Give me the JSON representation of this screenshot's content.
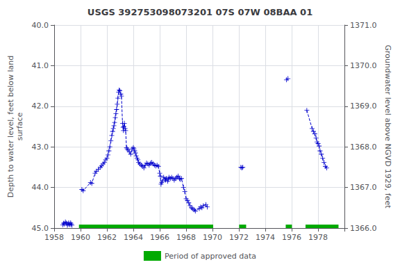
{
  "chart_data": {
    "type": "line",
    "title": "USGS 392753098073201 07S 07W 08BAA 01",
    "ylabel": "Depth to water level, feet below land\nsurface",
    "y2label": "Groundwater level above NGVD 1929, feet",
    "xlim": [
      1958,
      1980
    ],
    "xticks": [
      1958,
      1960,
      1962,
      1964,
      1966,
      1968,
      1970,
      1972,
      1974,
      1976,
      1978
    ],
    "ylim": [
      45.0,
      40.0
    ],
    "yticks": [
      {
        "value": 40.0,
        "label": "40.0"
      },
      {
        "value": 41.0,
        "label": "41.0"
      },
      {
        "value": 42.0,
        "label": "42.0"
      },
      {
        "value": 43.0,
        "label": "43.0"
      },
      {
        "value": 44.0,
        "label": "44.0"
      },
      {
        "value": 45.0,
        "label": "45.0"
      }
    ],
    "y2lim": [
      1366.0,
      1371.0
    ],
    "y2ticks": [
      {
        "value": 1371.0,
        "label": "1371.0"
      },
      {
        "value": 1370.0,
        "label": "1370.0"
      },
      {
        "value": 1369.0,
        "label": "1369.0"
      },
      {
        "value": 1368.0,
        "label": "1368.0"
      },
      {
        "value": 1367.0,
        "label": "1367.0"
      },
      {
        "value": 1366.0,
        "label": "1366.0"
      }
    ],
    "grid": true,
    "legend": "bottom",
    "series": [
      {
        "type": "line",
        "color": "#0000cc",
        "marker": "plus",
        "line_style": "dashed",
        "x": [
          1958.65,
          1958.72,
          1958.78,
          1958.85,
          1958.92,
          1959.0,
          1959.05,
          1959.1,
          1959.15,
          1959.2,
          1959.25,
          1959.3,
          1959.35
        ],
        "values": [
          44.92,
          44.88,
          44.9,
          44.85,
          44.88,
          44.93,
          44.9,
          44.87,
          44.9,
          44.92,
          44.87,
          44.9,
          44.93
        ]
      },
      {
        "type": "line",
        "color": "#0000cc",
        "marker": "plus",
        "line_style": "dashed",
        "x": [
          1960.1,
          1960.2,
          1960.75,
          1960.85,
          1961.1,
          1961.2,
          1961.35,
          1961.5,
          1961.6,
          1961.7,
          1961.8,
          1961.9,
          1962.0,
          1962.08,
          1962.15,
          1962.22,
          1962.3,
          1962.37,
          1962.43,
          1962.48,
          1962.53,
          1962.58,
          1962.63,
          1962.68,
          1962.73,
          1962.78,
          1962.83,
          1962.88,
          1962.93,
          1962.98,
          1963.05,
          1963.1,
          1963.18,
          1963.22,
          1963.25,
          1963.28,
          1963.32,
          1963.38,
          1963.42,
          1963.48,
          1963.53,
          1963.6,
          1963.7,
          1963.8,
          1963.9,
          1964.0,
          1964.05,
          1964.1,
          1964.15,
          1964.22,
          1964.28,
          1964.35,
          1964.4,
          1964.5,
          1964.6,
          1964.7,
          1964.8,
          1964.9,
          1965.0,
          1965.1,
          1965.2,
          1965.3,
          1965.4,
          1965.5,
          1965.6,
          1965.7,
          1965.8,
          1965.9,
          1966.0,
          1966.05,
          1966.1,
          1966.15,
          1966.2,
          1966.3,
          1966.4,
          1966.45,
          1966.5,
          1966.6,
          1966.65,
          1966.7,
          1966.8,
          1966.9,
          1967.0,
          1967.1,
          1967.2,
          1967.3,
          1967.4,
          1967.5,
          1967.55,
          1967.65,
          1967.8,
          1967.9,
          1968.0,
          1968.1,
          1968.2,
          1968.3,
          1968.4,
          1968.5,
          1968.6,
          1968.7,
          1969.0,
          1969.1,
          1969.2,
          1969.3,
          1969.5,
          1969.6
        ],
        "values": [
          44.05,
          44.08,
          43.88,
          43.9,
          43.65,
          43.6,
          43.55,
          43.5,
          43.47,
          43.42,
          43.38,
          43.32,
          43.28,
          43.2,
          43.1,
          43.0,
          42.85,
          42.72,
          42.62,
          42.55,
          42.48,
          42.4,
          42.28,
          42.18,
          42.08,
          41.95,
          41.8,
          41.65,
          41.6,
          41.62,
          41.7,
          41.75,
          42.42,
          42.52,
          42.6,
          42.5,
          42.42,
          42.55,
          42.6,
          43.02,
          43.05,
          43.08,
          43.12,
          43.18,
          43.05,
          43.02,
          43.05,
          43.1,
          43.15,
          43.22,
          43.28,
          43.32,
          43.38,
          43.42,
          43.45,
          43.48,
          43.52,
          43.45,
          43.4,
          43.42,
          43.45,
          43.4,
          43.38,
          43.42,
          43.45,
          43.47,
          43.45,
          43.48,
          43.65,
          43.72,
          43.92,
          43.88,
          43.85,
          43.75,
          43.8,
          43.82,
          43.78,
          43.85,
          43.8,
          43.75,
          43.78,
          43.75,
          43.78,
          43.82,
          43.78,
          43.75,
          43.72,
          43.78,
          43.8,
          43.78,
          44.0,
          44.1,
          44.28,
          44.32,
          44.38,
          44.45,
          44.5,
          44.52,
          44.55,
          44.58,
          44.52,
          44.48,
          44.5,
          44.45,
          44.42,
          44.48
        ]
      },
      {
        "type": "line",
        "color": "#0000cc",
        "marker": "plus",
        "line_style": "dashed",
        "x": [
          1972.15,
          1972.22,
          1972.3
        ],
        "values": [
          43.5,
          43.52,
          43.5
        ]
      },
      {
        "type": "line",
        "color": "#0000cc",
        "marker": "plus",
        "line_style": "dashed",
        "x": [
          1975.6,
          1975.72
        ],
        "values": [
          41.35,
          41.32
        ]
      },
      {
        "type": "line",
        "color": "#0000cc",
        "marker": "plus",
        "line_style": "dashed",
        "x": [
          1977.15,
          1977.55,
          1977.65,
          1977.75,
          1977.85,
          1977.92,
          1978.0,
          1978.08,
          1978.15,
          1978.25,
          1978.35,
          1978.45,
          1978.55,
          1978.65
        ],
        "values": [
          42.1,
          42.55,
          42.62,
          42.68,
          42.78,
          42.88,
          42.92,
          42.98,
          43.1,
          43.18,
          43.28,
          43.38,
          43.48,
          43.52
        ]
      },
      {
        "type": "span",
        "name": "Period of approved data",
        "color": "#00aa00",
        "spans": [
          [
            1959.88,
            1970.05
          ],
          [
            1972.02,
            1972.55
          ],
          [
            1975.55,
            1976.02
          ],
          [
            1977.05,
            1979.55
          ]
        ]
      }
    ]
  }
}
